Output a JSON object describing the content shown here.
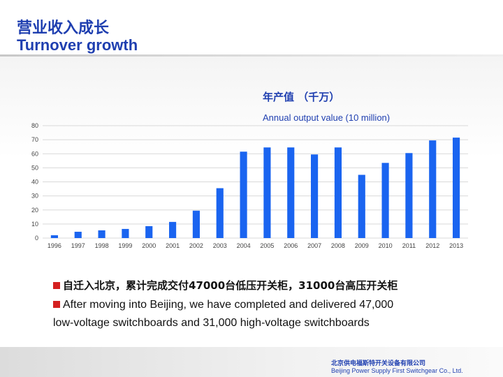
{
  "header": {
    "title_cn": "营业收入成长",
    "title_en": "Turnover growth"
  },
  "chart_data": {
    "type": "bar",
    "title": "年产值 （千万）",
    "subtitle": "Annual output value (10 million)",
    "categories": [
      "1996",
      "1997",
      "1998",
      "1999",
      "2000",
      "2001",
      "2002",
      "2003",
      "2004",
      "2005",
      "2006",
      "2007",
      "2008",
      "2009",
      "2010",
      "2011",
      "2012",
      "2013"
    ],
    "values": [
      2,
      4.5,
      5.5,
      6.5,
      8.5,
      11.5,
      19.5,
      35.5,
      61.5,
      64.5,
      64.5,
      59.5,
      64.5,
      45,
      53.5,
      60.5,
      69.5,
      71.5
    ],
    "ylim": [
      0,
      80
    ],
    "yticks": [
      "0",
      "10",
      "20",
      "30",
      "40",
      "50",
      "60",
      "70",
      "80"
    ],
    "grid": true,
    "bar_color": "#1a64f0",
    "grid_color": "#d9d9d9"
  },
  "bullets": {
    "item1": "自迁入北京，累计完成交付47000台低压开关柜，31000台高压开关柜",
    "item2_line1": "After moving into Beijing, we have completed and delivered 47,000",
    "item2_line2": "low-voltage switchboards and 31,000 high-voltage switchboards"
  },
  "footer": {
    "company_cn": "北京供电福斯特开关设备有限公司",
    "company_en": "Beijing Power Supply First Switchgear Co., Ltd."
  },
  "colors": {
    "accent": "#1f3fb0",
    "bullet_marker": "#d42020"
  }
}
